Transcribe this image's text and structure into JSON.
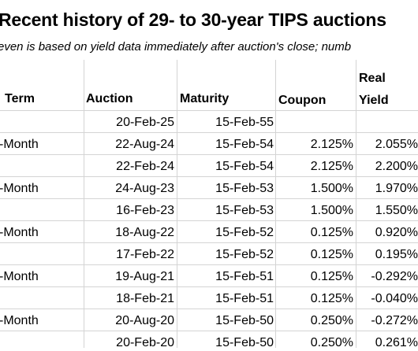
{
  "title": "Recent history of 29- to 30-year TIPS auctions",
  "subtitle": "even is based on yield data immediately after auction's close; numb",
  "columns": {
    "term": "Term",
    "auction": "Auction",
    "maturity": "Maturity",
    "coupon": "Coupon",
    "real_yield_line1": "Real",
    "real_yield_line2": "Yield"
  },
  "rows": [
    {
      "term": "",
      "auction": "20-Feb-25",
      "maturity": "15-Feb-55",
      "coupon": "",
      "real_yield": ""
    },
    {
      "term": "-Month",
      "auction": "22-Aug-24",
      "maturity": "15-Feb-54",
      "coupon": "2.125%",
      "real_yield": "2.055%"
    },
    {
      "term": "",
      "auction": "22-Feb-24",
      "maturity": "15-Feb-54",
      "coupon": "2.125%",
      "real_yield": "2.200%"
    },
    {
      "term": "-Month",
      "auction": "24-Aug-23",
      "maturity": "15-Feb-53",
      "coupon": "1.500%",
      "real_yield": "1.970%"
    },
    {
      "term": "",
      "auction": "16-Feb-23",
      "maturity": "15-Feb-53",
      "coupon": "1.500%",
      "real_yield": "1.550%"
    },
    {
      "term": "-Month",
      "auction": "18-Aug-22",
      "maturity": "15-Feb-52",
      "coupon": "0.125%",
      "real_yield": "0.920%"
    },
    {
      "term": "",
      "auction": "17-Feb-22",
      "maturity": "15-Feb-52",
      "coupon": "0.125%",
      "real_yield": "0.195%"
    },
    {
      "term": "-Month",
      "auction": "19-Aug-21",
      "maturity": "15-Feb-51",
      "coupon": "0.125%",
      "real_yield": "-0.292%"
    },
    {
      "term": "",
      "auction": "18-Feb-21",
      "maturity": "15-Feb-51",
      "coupon": "0.125%",
      "real_yield": "-0.040%"
    },
    {
      "term": "-Month",
      "auction": "20-Aug-20",
      "maturity": "15-Feb-50",
      "coupon": "0.250%",
      "real_yield": "-0.272%"
    },
    {
      "term": "",
      "auction": "20-Feb-20",
      "maturity": "15-Feb-50",
      "coupon": "0.250%",
      "real_yield": "0.261%"
    }
  ]
}
